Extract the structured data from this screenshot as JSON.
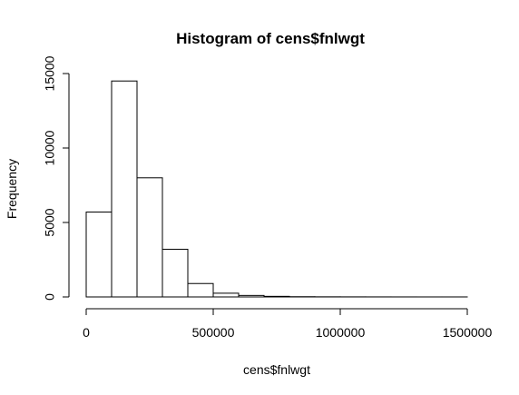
{
  "chart_data": {
    "type": "bar",
    "title": "Histogram of cens$fnlwgt",
    "xlabel": "cens$fnlwgt",
    "ylabel": "Frequency",
    "bin_width": 100000,
    "bins": [
      {
        "x0": 0,
        "x1": 100000,
        "count": 5700
      },
      {
        "x0": 100000,
        "x1": 200000,
        "count": 14500
      },
      {
        "x0": 200000,
        "x1": 300000,
        "count": 8000
      },
      {
        "x0": 300000,
        "x1": 400000,
        "count": 3200
      },
      {
        "x0": 400000,
        "x1": 500000,
        "count": 900
      },
      {
        "x0": 500000,
        "x1": 600000,
        "count": 250
      },
      {
        "x0": 600000,
        "x1": 700000,
        "count": 100
      },
      {
        "x0": 700000,
        "x1": 800000,
        "count": 40
      },
      {
        "x0": 800000,
        "x1": 900000,
        "count": 15
      },
      {
        "x0": 900000,
        "x1": 1000000,
        "count": 8
      },
      {
        "x0": 1000000,
        "x1": 1100000,
        "count": 5
      },
      {
        "x0": 1100000,
        "x1": 1200000,
        "count": 3
      },
      {
        "x0": 1200000,
        "x1": 1300000,
        "count": 2
      },
      {
        "x0": 1300000,
        "x1": 1400000,
        "count": 1
      },
      {
        "x0": 1400000,
        "x1": 1500000,
        "count": 1
      }
    ],
    "xlim": [
      0,
      1500000
    ],
    "ylim": [
      0,
      15000
    ],
    "x_ticks": [
      0,
      500000,
      1000000,
      1500000
    ],
    "x_tick_labels": [
      "0",
      "500000",
      "1000000",
      "1500000"
    ],
    "y_ticks": [
      0,
      5000,
      10000,
      15000
    ],
    "y_tick_labels": [
      "0",
      "5000",
      "10000",
      "15000"
    ],
    "grid": false,
    "legend": "none",
    "bar_fill": "#ffffff",
    "bar_stroke": "#000000"
  }
}
